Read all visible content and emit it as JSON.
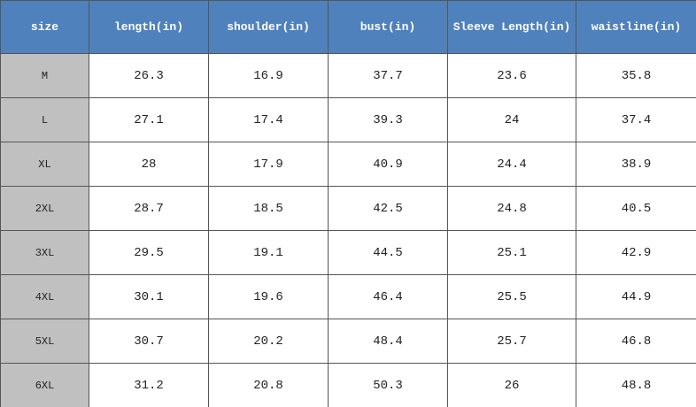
{
  "table": {
    "header": [
      "size",
      "length(in)",
      "shoulder(in)",
      "bust(in)",
      "Sleeve Length(in)",
      "waistline(in)"
    ],
    "rows": [
      [
        "M",
        "26.3",
        "16.9",
        "37.7",
        "23.6",
        "35.8"
      ],
      [
        "L",
        "27.1",
        "17.4",
        "39.3",
        "24",
        "37.4"
      ],
      [
        "XL",
        "28",
        "17.9",
        "40.9",
        "24.4",
        "38.9"
      ],
      [
        "2XL",
        "28.7",
        "18.5",
        "42.5",
        "24.8",
        "40.5"
      ],
      [
        "3XL",
        "29.5",
        "19.1",
        "44.5",
        "25.1",
        "42.9"
      ],
      [
        "4XL",
        "30.1",
        "19.6",
        "46.4",
        "25.5",
        "44.9"
      ],
      [
        "5XL",
        "30.7",
        "20.2",
        "48.4",
        "25.7",
        "46.8"
      ],
      [
        "6XL",
        "31.2",
        "20.8",
        "50.3",
        "26",
        "48.8"
      ]
    ]
  }
}
